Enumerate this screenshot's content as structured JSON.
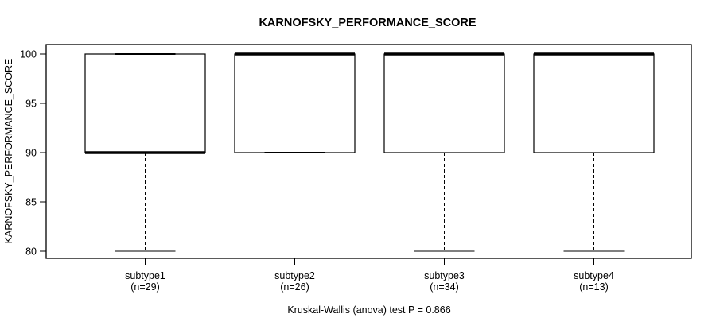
{
  "title": "KARNOFSKY_PERFORMANCE_SCORE",
  "y_axis": {
    "label": "KARNOFSKY_PERFORMANCE_SCORE"
  },
  "caption": "Kruskal-Wallis (anova) test P = 0.866",
  "chart_data": {
    "type": "boxplot",
    "title": "KARNOFSKY_PERFORMANCE_SCORE",
    "xlabel": "",
    "ylabel": "KARNOFSKY_PERFORMANCE_SCORE",
    "ylim": [
      80,
      100
    ],
    "yticks": [
      80,
      85,
      90,
      95,
      100
    ],
    "grid": false,
    "legend": "none",
    "categories": [
      "subtype1",
      "subtype2",
      "subtype3",
      "subtype4"
    ],
    "n_labels": [
      "(n=29)",
      "(n=26)",
      "(n=34)",
      "(n=13)"
    ],
    "series": [
      {
        "name": "subtype1",
        "n": 29,
        "min": 80,
        "q1": 90,
        "median": 90,
        "q3": 100,
        "max": 100
      },
      {
        "name": "subtype2",
        "n": 26,
        "min": 90,
        "q1": 90,
        "median": 100,
        "q3": 100,
        "max": 100
      },
      {
        "name": "subtype3",
        "n": 34,
        "min": 80,
        "q1": 90,
        "median": 100,
        "q3": 100,
        "max": 100
      },
      {
        "name": "subtype4",
        "n": 13,
        "min": 80,
        "q1": 90,
        "median": 100,
        "q3": 100,
        "max": 100
      }
    ],
    "footnote": "Kruskal-Wallis (anova) test P = 0.866",
    "colors": {
      "line": "#000000",
      "background": "#ffffff"
    }
  }
}
